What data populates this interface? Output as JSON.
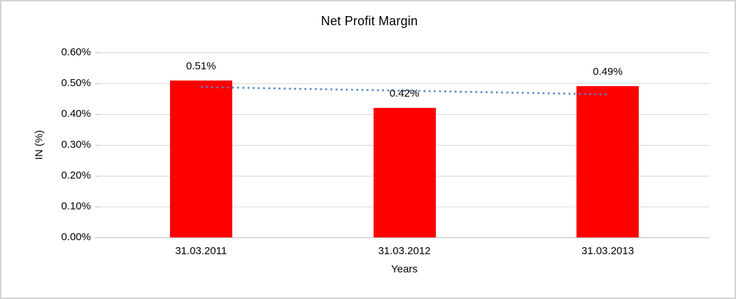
{
  "chart_data": {
    "type": "bar",
    "title": "Net Profit Margin",
    "xlabel": "Years",
    "ylabel": "IN (%)",
    "categories": [
      "31.03.2011",
      "31.03.2012",
      "31.03.2013"
    ],
    "values": [
      0.51,
      0.42,
      0.49
    ],
    "data_labels": [
      "0.51%",
      "0.42%",
      "0.49%"
    ],
    "ylim": [
      0,
      0.6
    ],
    "yticks": [
      {
        "value": 0.0,
        "label": "0.00%"
      },
      {
        "value": 0.1,
        "label": "0.10%"
      },
      {
        "value": 0.2,
        "label": "0.20%"
      },
      {
        "value": 0.3,
        "label": "0.30%"
      },
      {
        "value": 0.4,
        "label": "0.40%"
      },
      {
        "value": 0.5,
        "label": "0.50%"
      },
      {
        "value": 0.6,
        "label": "0.60%"
      }
    ],
    "grid": true,
    "legend": false,
    "bar_color": "#ff0000",
    "gridline_color": "#d9d9d9",
    "axis_line_color": "#bfbfbf",
    "trendline": {
      "style": "dotted",
      "color": "#4e86c6",
      "points": [
        {
          "category_index": 0,
          "value": 0.488
        },
        {
          "category_index": 2,
          "value": 0.464
        }
      ]
    }
  }
}
